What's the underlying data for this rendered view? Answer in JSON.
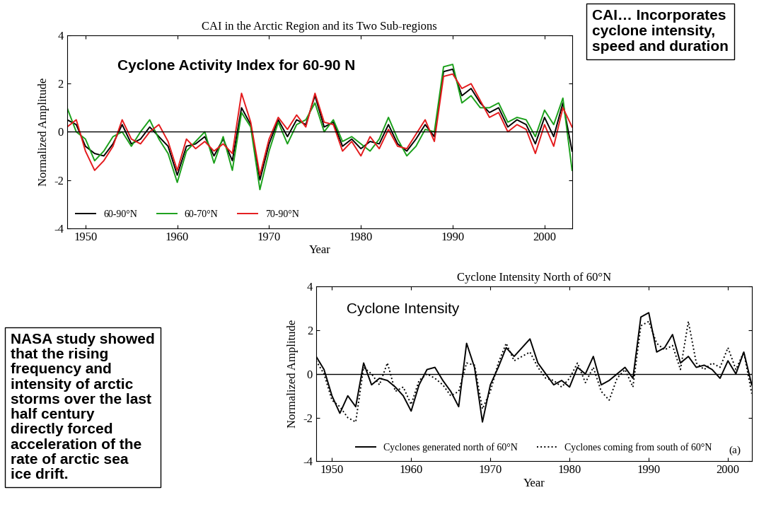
{
  "chart_data": [
    {
      "type": "line",
      "title": "CAI in the Arctic Region and its Two Sub-regions",
      "x_label": "Year",
      "y_label": "Normalized Amplitude",
      "annotations": [
        "Cyclone Activity Index for 60-90 N",
        "CAI… Incorporates cyclone intensity, speed and duration"
      ],
      "x": [
        1948,
        1949,
        1950,
        1951,
        1952,
        1953,
        1954,
        1955,
        1956,
        1957,
        1958,
        1959,
        1960,
        1961,
        1962,
        1963,
        1964,
        1965,
        1966,
        1967,
        1968,
        1969,
        1970,
        1971,
        1972,
        1973,
        1974,
        1975,
        1976,
        1977,
        1978,
        1979,
        1980,
        1981,
        1982,
        1983,
        1984,
        1985,
        1986,
        1987,
        1988,
        1989,
        1990,
        1991,
        1992,
        1993,
        1994,
        1995,
        1996,
        1997,
        1998,
        1999,
        2000,
        2001,
        2002,
        2003
      ],
      "xlim": [
        1948,
        2003
      ],
      "xticks": [
        1950,
        1960,
        1970,
        1980,
        1990,
        2000
      ],
      "ylim": [
        -4,
        4
      ],
      "yticks": [
        -4,
        -2,
        0,
        2,
        4
      ],
      "legend": "lower left",
      "series": [
        {
          "name": "60-90°N",
          "color": "#000000",
          "line_style": "solid",
          "values": [
            0.5,
            0.3,
            -0.6,
            -0.9,
            -1.0,
            -0.5,
            0.3,
            -0.5,
            -0.3,
            0.2,
            -0.2,
            -0.6,
            -1.8,
            -0.6,
            -0.5,
            -0.2,
            -1.0,
            -0.3,
            -1.2,
            1.0,
            0.3,
            -2.0,
            -0.5,
            0.5,
            -0.2,
            0.5,
            0.3,
            1.5,
            0.2,
            0.4,
            -0.6,
            -0.3,
            -0.7,
            -0.4,
            -0.5,
            0.3,
            -0.5,
            -0.8,
            -0.3,
            0.3,
            -0.2,
            2.5,
            2.6,
            1.5,
            1.8,
            1.2,
            0.8,
            1.0,
            0.2,
            0.5,
            0.3,
            -0.5,
            0.6,
            -0.2,
            1.2,
            -0.8
          ]
        },
        {
          "name": "60-70°N",
          "color": "#1aa01a",
          "line_style": "solid",
          "values": [
            1.0,
            0.0,
            -0.3,
            -1.2,
            -0.8,
            -0.2,
            0.0,
            -0.6,
            0.0,
            0.5,
            -0.3,
            -0.9,
            -2.1,
            -0.8,
            -0.4,
            0.0,
            -1.3,
            -0.2,
            -1.6,
            0.8,
            0.2,
            -2.4,
            -0.8,
            0.4,
            -0.5,
            0.3,
            0.5,
            1.2,
            0.0,
            0.5,
            -0.4,
            -0.2,
            -0.5,
            -0.8,
            -0.3,
            0.6,
            -0.3,
            -1.0,
            -0.6,
            0.1,
            0.0,
            2.7,
            2.8,
            1.2,
            1.5,
            1.0,
            1.0,
            1.2,
            0.4,
            0.6,
            0.5,
            -0.2,
            0.9,
            0.3,
            1.4,
            -1.6
          ]
        },
        {
          "name": "70-90°N",
          "color": "#e41a1c",
          "line_style": "solid",
          "values": [
            0.2,
            0.5,
            -0.8,
            -1.6,
            -1.2,
            -0.6,
            0.5,
            -0.3,
            -0.5,
            0.0,
            0.3,
            -0.4,
            -1.6,
            -0.3,
            -0.7,
            -0.4,
            -0.8,
            -0.5,
            -0.9,
            1.6,
            0.4,
            -1.8,
            -0.3,
            0.6,
            0.1,
            0.7,
            0.2,
            1.6,
            0.4,
            0.3,
            -0.8,
            -0.4,
            -1.0,
            -0.2,
            -0.7,
            0.1,
            -0.6,
            -0.7,
            -0.1,
            0.5,
            -0.4,
            2.3,
            2.4,
            1.8,
            2.0,
            1.3,
            0.6,
            0.8,
            0.0,
            0.3,
            0.1,
            -0.9,
            0.3,
            -0.6,
            1.0,
            0.2
          ]
        }
      ]
    },
    {
      "type": "line",
      "title": "Cyclone Intensity North of 60°N",
      "x_label": "Year",
      "y_label": "Normalized Amplitude",
      "annotations": [
        "Cyclone Intensity",
        "(a)",
        "NASA study showed that the rising frequency and intensity of arctic storms over the last half century directly forced acceleration of the rate of arctic sea ice drift."
      ],
      "x": [
        1948,
        1949,
        1950,
        1951,
        1952,
        1953,
        1954,
        1955,
        1956,
        1957,
        1958,
        1959,
        1960,
        1961,
        1962,
        1963,
        1964,
        1965,
        1966,
        1967,
        1968,
        1969,
        1970,
        1971,
        1972,
        1973,
        1974,
        1975,
        1976,
        1977,
        1978,
        1979,
        1980,
        1981,
        1982,
        1983,
        1984,
        1985,
        1986,
        1987,
        1988,
        1989,
        1990,
        1991,
        1992,
        1993,
        1994,
        1995,
        1996,
        1997,
        1998,
        1999,
        2000,
        2001,
        2002,
        2003
      ],
      "xlim": [
        1948,
        2003
      ],
      "xticks": [
        1950,
        1960,
        1970,
        1980,
        1990,
        2000
      ],
      "ylim": [
        -4,
        4
      ],
      "yticks": [
        -4,
        -2,
        0,
        2,
        4
      ],
      "legend": "lower center",
      "series": [
        {
          "name": "Cyclones generated north of 60°N",
          "color": "#000000",
          "line_style": "solid",
          "values": [
            0.8,
            0.2,
            -1.0,
            -1.8,
            -1.0,
            -1.5,
            0.5,
            -0.5,
            -0.2,
            -0.3,
            -0.6,
            -1.0,
            -1.7,
            -0.5,
            0.2,
            0.3,
            -0.3,
            -0.8,
            -1.5,
            1.4,
            0.3,
            -2.2,
            -0.5,
            0.3,
            1.2,
            0.8,
            1.2,
            1.6,
            0.5,
            0.0,
            -0.5,
            -0.3,
            -0.6,
            0.3,
            0.0,
            0.8,
            -0.5,
            -0.3,
            0.0,
            0.3,
            -0.2,
            2.6,
            2.8,
            1.0,
            1.2,
            1.8,
            0.5,
            0.8,
            0.3,
            0.4,
            0.2,
            -0.2,
            0.6,
            0.0,
            1.0,
            -0.5
          ]
        },
        {
          "name": "Cyclones coming from south of 60°N",
          "color": "#000000",
          "line_style": "dotted",
          "values": [
            0.6,
            0.0,
            -1.2,
            -1.5,
            -2.0,
            -2.2,
            0.3,
            0.0,
            -0.5,
            0.5,
            -0.8,
            -0.6,
            -1.4,
            -0.3,
            0.0,
            -0.2,
            -0.5,
            -1.0,
            -0.8,
            0.5,
            0.4,
            -1.6,
            -0.8,
            0.5,
            1.4,
            0.6,
            0.8,
            1.0,
            0.3,
            -0.2,
            -0.3,
            -0.6,
            -0.2,
            0.5,
            -0.4,
            0.3,
            -0.8,
            -1.2,
            -0.2,
            0.2,
            -0.6,
            2.2,
            2.4,
            1.4,
            1.1,
            1.3,
            0.2,
            2.4,
            0.5,
            0.2,
            0.5,
            0.3,
            1.2,
            0.2,
            1.0,
            -0.9
          ]
        }
      ]
    }
  ]
}
